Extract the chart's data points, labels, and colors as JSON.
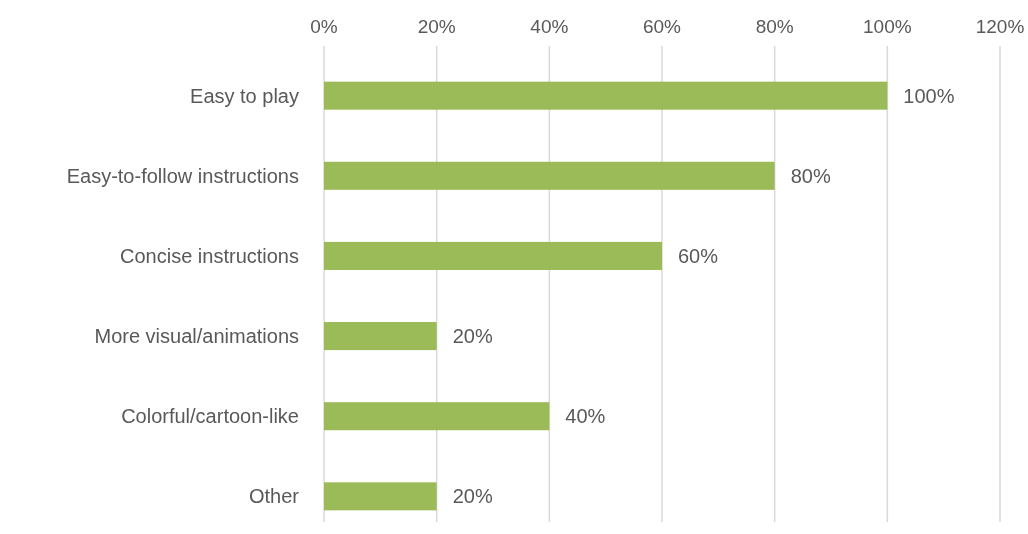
{
  "chart_data": {
    "type": "bar",
    "orientation": "horizontal",
    "categories": [
      "Easy to play",
      "Easy-to-follow instructions",
      "Concise instructions",
      "More visual/animations",
      "Colorful/cartoon-like",
      "Other"
    ],
    "values": [
      100,
      80,
      60,
      20,
      40,
      20
    ],
    "value_labels": [
      "100%",
      "80%",
      "60%",
      "20%",
      "40%",
      "20%"
    ],
    "color": "#9bbb59",
    "xlim": [
      0,
      120
    ],
    "xticks": [
      {
        "value": 0,
        "label": "0%"
      },
      {
        "value": 20,
        "label": "20%"
      },
      {
        "value": 40,
        "label": "40%"
      },
      {
        "value": 60,
        "label": "60%"
      },
      {
        "value": 80,
        "label": "80%"
      },
      {
        "value": 100,
        "label": "100%"
      },
      {
        "value": 120,
        "label": "120%"
      }
    ],
    "grid": "x"
  }
}
